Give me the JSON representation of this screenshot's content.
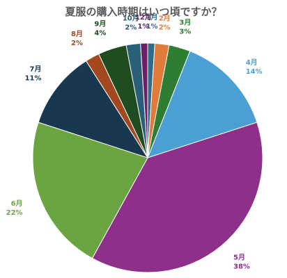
{
  "chart_data": {
    "type": "pie",
    "title": "夏服の購入時期はいつ頃ですか？",
    "start_angle_deg": 0,
    "direction": "clockwise",
    "slices": [
      {
        "label": "1月",
        "value": 1,
        "display": "1%",
        "color": "#2e6b8a"
      },
      {
        "label": "2月",
        "value": 2,
        "display": "2%",
        "color": "#e07b39"
      },
      {
        "label": "3月",
        "value": 3,
        "display": "3%",
        "color": "#2e7d32"
      },
      {
        "label": "4月",
        "value": 14,
        "display": "14%",
        "color": "#4a9fd4"
      },
      {
        "label": "5月",
        "value": 38,
        "display": "38%",
        "color": "#8e2f8a"
      },
      {
        "label": "6月",
        "value": 22,
        "display": "22%",
        "color": "#6aa541"
      },
      {
        "label": "7月",
        "value": 11,
        "display": "11%",
        "color": "#17384f"
      },
      {
        "label": "8月",
        "value": 2,
        "display": "2%",
        "color": "#a3481f"
      },
      {
        "label": "9月",
        "value": 4,
        "display": "4%",
        "color": "#1f4d1f"
      },
      {
        "label": "10月",
        "value": 2,
        "display": "2%",
        "color": "#2a5f7a"
      },
      {
        "label": "12月",
        "value": 1,
        "display": "1%",
        "color": "#6b1f66"
      }
    ]
  }
}
